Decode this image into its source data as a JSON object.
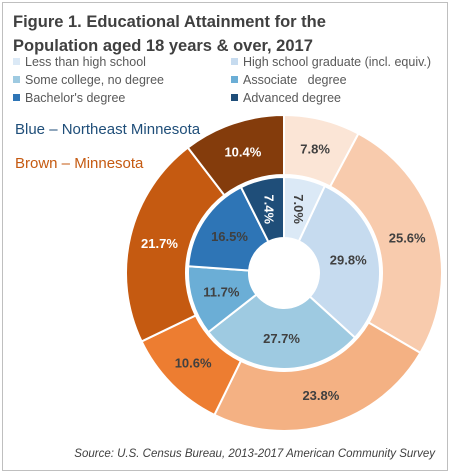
{
  "title_line1": "Figure 1. Educational Attainment for the",
  "title_line2": "Population aged 18 years & over, 2017",
  "legend": [
    {
      "label": "Less than high school",
      "color": "#dbe9f6"
    },
    {
      "label": "High school graduate (incl. equiv.)",
      "color": "#c6dbef"
    },
    {
      "label": "Some college, no degree",
      "color": "#9ecae1"
    },
    {
      "label": "Associate   degree",
      "color": "#6baed6"
    },
    {
      "label": "Bachelor's degree",
      "color": "#2e75b6"
    },
    {
      "label": "Advanced degree",
      "color": "#1f4e79"
    }
  ],
  "series_labels": {
    "blue": "Blue – Northeast Minnesota",
    "brown": "Brown – Minnesota"
  },
  "source": "Source: U.S. Census Bureau, 2013-2017 American Community Survey",
  "chart_data": {
    "type": "pie",
    "variant": "doughnut",
    "title": "Figure 1. Educational Attainment for the Population aged 18 years & over, 2017",
    "categories": [
      "Less than high school",
      "High school graduate (incl. equiv.)",
      "Some college, no degree",
      "Associate degree",
      "Bachelor's degree",
      "Advanced degree"
    ],
    "series": [
      {
        "name": "Blue – Northeast Minnesota",
        "ring": "inner",
        "values": [
          7.0,
          29.8,
          27.7,
          11.7,
          16.5,
          7.4
        ],
        "labels": [
          "7.0%",
          "29.8%",
          "27.7%",
          "11.7%",
          "16.5%",
          "7.4%"
        ],
        "colors": [
          "#dbe9f6",
          "#c6dbef",
          "#9ecae1",
          "#6baed6",
          "#2e75b6",
          "#1f4e79"
        ]
      },
      {
        "name": "Brown – Minnesota",
        "ring": "outer",
        "values": [
          7.8,
          25.6,
          23.8,
          10.6,
          21.7,
          10.4
        ],
        "labels": [
          "7.8%",
          "25.6%",
          "23.8%",
          "10.6%",
          "21.7%",
          "10.4%"
        ],
        "colors": [
          "#fbe5d6",
          "#f8cbad",
          "#f4b183",
          "#ed7d31",
          "#c55a11",
          "#843c0c"
        ]
      }
    ]
  }
}
